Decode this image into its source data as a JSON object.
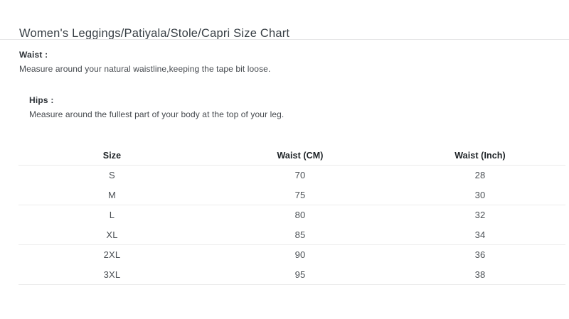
{
  "page": {
    "title": "Women's Leggings/Patiyala/Stole/Capri Size Chart"
  },
  "sections": {
    "waist": {
      "label": "Waist :",
      "description": "Measure around your natural waistline,keeping the tape bit loose."
    },
    "hips": {
      "label": "Hips :",
      "description": "Measure around the fullest part of your body at the top of your leg."
    }
  },
  "size_table": {
    "headers": [
      "Size",
      "Waist (CM)",
      "Waist (Inch)"
    ],
    "rows": [
      [
        "S",
        "70",
        "28"
      ],
      [
        "M",
        "75",
        "30"
      ],
      [
        "L",
        "80",
        "32"
      ],
      [
        "XL",
        "85",
        "34"
      ],
      [
        "2XL",
        "90",
        "36"
      ],
      [
        "3XL",
        "95",
        "38"
      ]
    ]
  },
  "colors": {
    "background": "#ffffff",
    "title_text": "#383f45",
    "body_text": "#45494e",
    "divider": "#e4e4e6",
    "table_border": "#ececec"
  }
}
